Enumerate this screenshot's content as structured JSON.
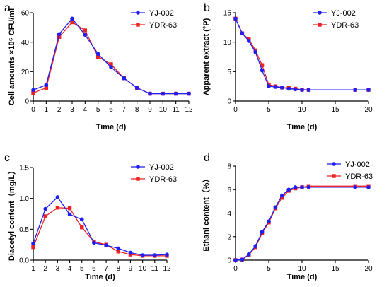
{
  "chart_data": [
    {
      "type": "line",
      "panel_label": "a",
      "x": [
        0,
        1,
        2,
        3,
        4,
        5,
        6,
        7,
        8,
        9,
        10,
        11,
        12
      ],
      "series": [
        {
          "name": "YJ-002",
          "values": [
            7.5,
            11,
            45.5,
            56,
            45,
            32,
            23,
            15.5,
            9,
            5,
            5,
            5,
            5
          ]
        },
        {
          "name": "YDR-63",
          "values": [
            5.5,
            9,
            43.5,
            53.5,
            48,
            30,
            25,
            15.5,
            9,
            5,
            5,
            5,
            5
          ]
        }
      ],
      "xlabel": "Time (d)",
      "ylabel": "Cell amounts ×10⁶ CFU/ml",
      "xlim": [
        0,
        12
      ],
      "ylim": [
        0,
        60
      ],
      "xticks": [
        0,
        1,
        2,
        3,
        4,
        5,
        6,
        7,
        8,
        9,
        10,
        11,
        12
      ],
      "yticks": [
        0,
        20,
        40,
        60
      ],
      "legend": "top-right"
    },
    {
      "type": "line",
      "panel_label": "b",
      "x": [
        0,
        1,
        2,
        3,
        4,
        5,
        6,
        7,
        8,
        9,
        10,
        11,
        18,
        20
      ],
      "series": [
        {
          "name": "YJ-002",
          "values": [
            14,
            11.5,
            10.2,
            8.3,
            5.2,
            2.5,
            2.4,
            2.3,
            2.1,
            2.0,
            1.9,
            1.9,
            1.9,
            1.9
          ]
        },
        {
          "name": "YDR-63",
          "values": [
            14,
            11.5,
            10.5,
            8.6,
            6.1,
            2.8,
            2.5,
            2.3,
            2.2,
            2.1,
            1.95,
            1.9,
            1.9,
            1.9
          ]
        }
      ],
      "xlabel": "Time (d)",
      "ylabel": "Apparent extract (°P)",
      "xlim": [
        0,
        20
      ],
      "ylim": [
        0,
        15
      ],
      "xticks": [
        0,
        5,
        10,
        15,
        20
      ],
      "yticks": [
        0,
        5,
        10,
        15
      ],
      "legend": "top-right"
    },
    {
      "type": "line",
      "panel_label": "c",
      "x": [
        1,
        2,
        3,
        4,
        5,
        6,
        7,
        8,
        9,
        10,
        11,
        12
      ],
      "series": [
        {
          "name": "YJ-002",
          "values": [
            0.27,
            0.83,
            1.02,
            0.74,
            0.66,
            0.28,
            0.24,
            0.19,
            0.12,
            0.08,
            0.08,
            0.09
          ]
        },
        {
          "name": "YDR-63",
          "values": [
            0.21,
            0.71,
            0.85,
            0.84,
            0.53,
            0.3,
            0.25,
            0.14,
            0.09,
            0.07,
            0.07,
            0.07
          ]
        }
      ],
      "xlabel": "Time (d)",
      "ylabel": "Diacetyl content（mg/L）",
      "xlim": [
        1,
        12
      ],
      "ylim": [
        0,
        1.5
      ],
      "xticks": [
        1,
        2,
        3,
        4,
        5,
        6,
        7,
        8,
        9,
        10,
        11,
        12
      ],
      "yticks": [
        0.0,
        0.5,
        1.0,
        1.5
      ],
      "legend": "top-right"
    },
    {
      "type": "line",
      "panel_label": "d",
      "x": [
        0,
        1,
        2,
        3,
        4,
        5,
        6,
        7,
        8,
        9,
        10,
        11,
        18,
        20
      ],
      "series": [
        {
          "name": "YJ-002",
          "values": [
            0,
            0.05,
            0.5,
            1.2,
            2.4,
            3.3,
            4.5,
            5.5,
            6.0,
            6.2,
            6.2,
            6.2,
            6.2,
            6.2
          ]
        },
        {
          "name": "YDR-63",
          "values": [
            0,
            0.05,
            0.45,
            1.1,
            2.3,
            3.2,
            4.4,
            5.3,
            5.9,
            6.1,
            6.2,
            6.3,
            6.3,
            6.3
          ]
        }
      ],
      "xlabel": "Time (d)",
      "ylabel": "Ethanl content（%）",
      "xlim": [
        0,
        20
      ],
      "ylim": [
        0,
        8
      ],
      "xticks": [
        0,
        5,
        10,
        15,
        20
      ],
      "yticks": [
        0,
        2,
        4,
        6,
        8
      ],
      "legend": "top-right"
    }
  ],
  "colors": {
    "YJ-002": "#1f1ff5",
    "YDR-63": "#ee2222"
  },
  "markers": {
    "YJ-002": "circle",
    "YDR-63": "square"
  }
}
